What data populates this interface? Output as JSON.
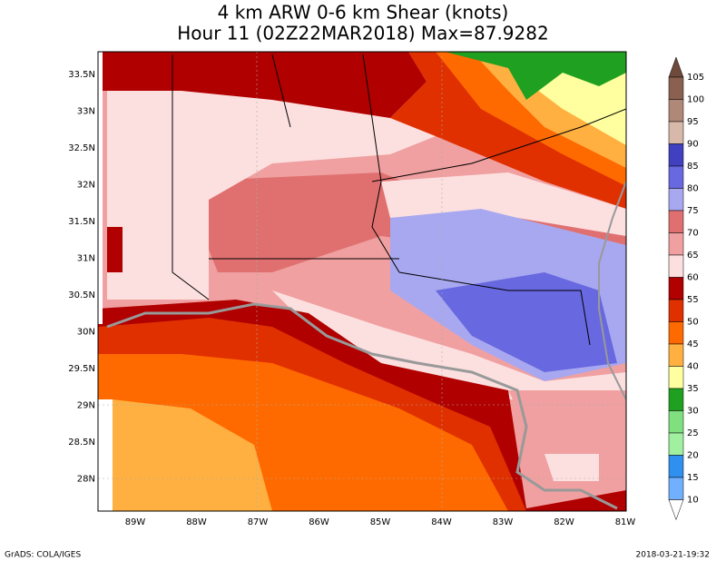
{
  "title_lines": [
    "4 km ARW 0-6 km Shear (knots)",
    "Hour 11 (02Z22MAR2018) Max=87.9282"
  ],
  "lat_labels": [
    "33.5N",
    "33N",
    "32.5N",
    "32N",
    "31.5N",
    "31N",
    "30.5N",
    "30N",
    "29.5N",
    "29N",
    "28.5N",
    "28N"
  ],
  "lon_labels": [
    "89W",
    "88W",
    "87W",
    "86W",
    "85W",
    "84W",
    "83W",
    "82W",
    "81W"
  ],
  "colorbar": {
    "levels": [
      105,
      100,
      95,
      90,
      85,
      80,
      75,
      70,
      65,
      60,
      55,
      50,
      45,
      40,
      35,
      30,
      25,
      20,
      15,
      10
    ],
    "colors": [
      "#6e4a3a",
      "#8a6050",
      "#b08878",
      "#d8b8a8",
      "#4040c0",
      "#6868e0",
      "#a8a8f0",
      "#e07070",
      "#f0a0a0",
      "#fce0e0",
      "#b00000",
      "#e03000",
      "#ff6a00",
      "#ffb040",
      "#ffffa0",
      "#20a020",
      "#80e080",
      "#a0f0a0",
      "#3090f0",
      "#70b0ff",
      "#ffffff"
    ]
  },
  "footer": {
    "left": "GrADS: COLA/IGES",
    "right": "2018-03-21-19:32"
  }
}
